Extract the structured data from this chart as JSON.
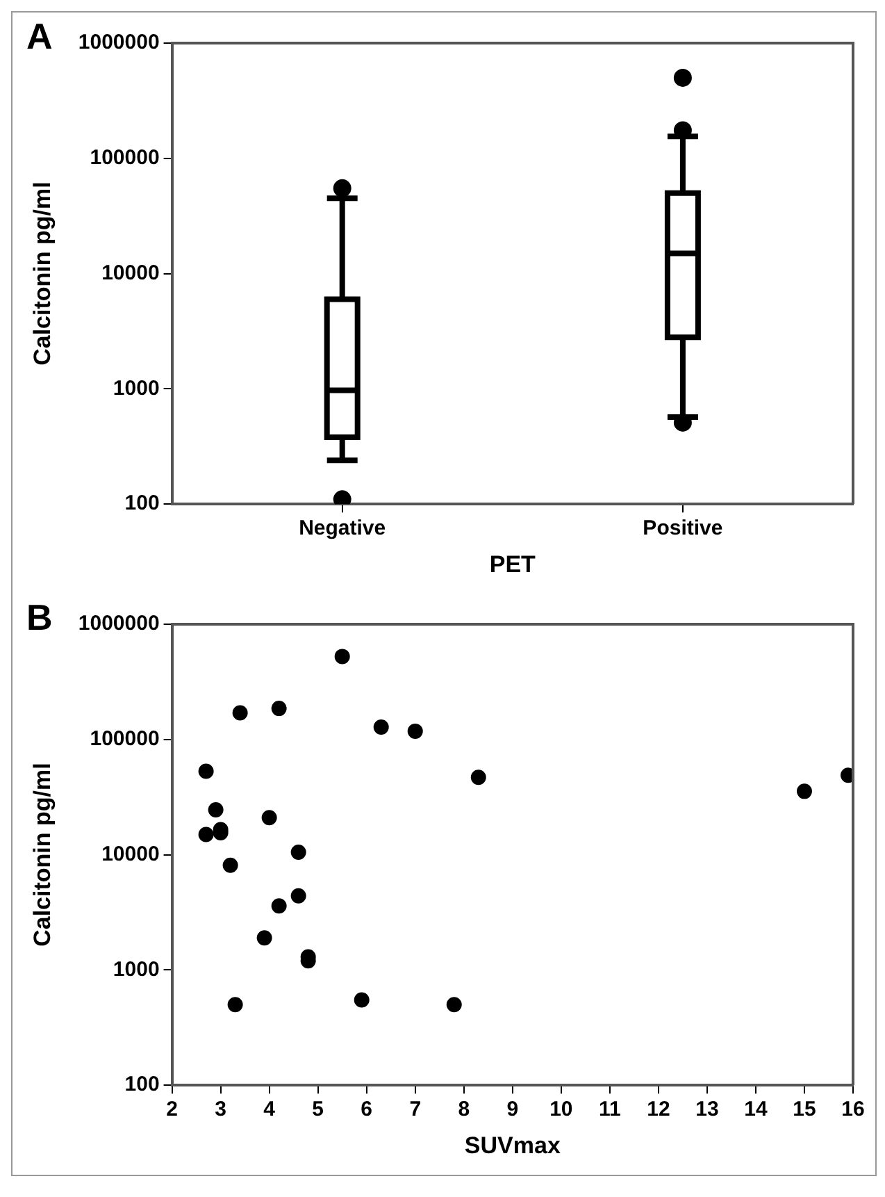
{
  "chart_data": [
    {
      "type": "box",
      "title": "A",
      "xlabel": "PET",
      "ylabel": "Calcitonin pg/ml",
      "categories": [
        "Negative",
        "Positive"
      ],
      "log": "y",
      "ylim": [
        100,
        1000000
      ],
      "yticks": [
        100,
        1000,
        10000,
        100000,
        1000000
      ],
      "grid": false,
      "legend": false,
      "color": "#000000",
      "boxes": [
        {
          "low": 240,
          "q1": 380,
          "median": 970,
          "q3": 6000,
          "high": 45000,
          "outliers": [
            110,
            55000
          ]
        },
        {
          "low": 570,
          "q1": 2800,
          "median": 15000,
          "q3": 50000,
          "high": 155000,
          "outliers": [
            510,
            175000,
            500000
          ]
        }
      ]
    },
    {
      "type": "scatter",
      "title": "B",
      "xlabel": "SUVmax",
      "ylabel": "Calcitonin pg/ml",
      "log": "y",
      "ylim": [
        100,
        1000000
      ],
      "yticks": [
        100,
        1000,
        10000,
        100000,
        1000000
      ],
      "xlim": [
        2,
        16
      ],
      "xticks": [
        2,
        3,
        4,
        5,
        6,
        7,
        8,
        9,
        10,
        11,
        12,
        13,
        14,
        15,
        16
      ],
      "grid": false,
      "legend": false,
      "marker": "circle",
      "series": [
        {
          "color": "#000000",
          "x": [
            5.5,
            3.4,
            4.2,
            6.3,
            7.0,
            2.7,
            8.3,
            2.9,
            4.0,
            2.7,
            3.0,
            3.0,
            4.6,
            3.2,
            4.6,
            4.2,
            3.9,
            4.8,
            4.8,
            3.3,
            5.9,
            7.8,
            15.0,
            15.9
          ],
          "values": [
            525000,
            170000,
            186000,
            128000,
            118000,
            53000,
            47000,
            24500,
            21000,
            15000,
            16500,
            15500,
            10500,
            8100,
            4400,
            3600,
            1900,
            1300,
            1200,
            500,
            550,
            500,
            35500,
            49000
          ]
        }
      ]
    }
  ]
}
